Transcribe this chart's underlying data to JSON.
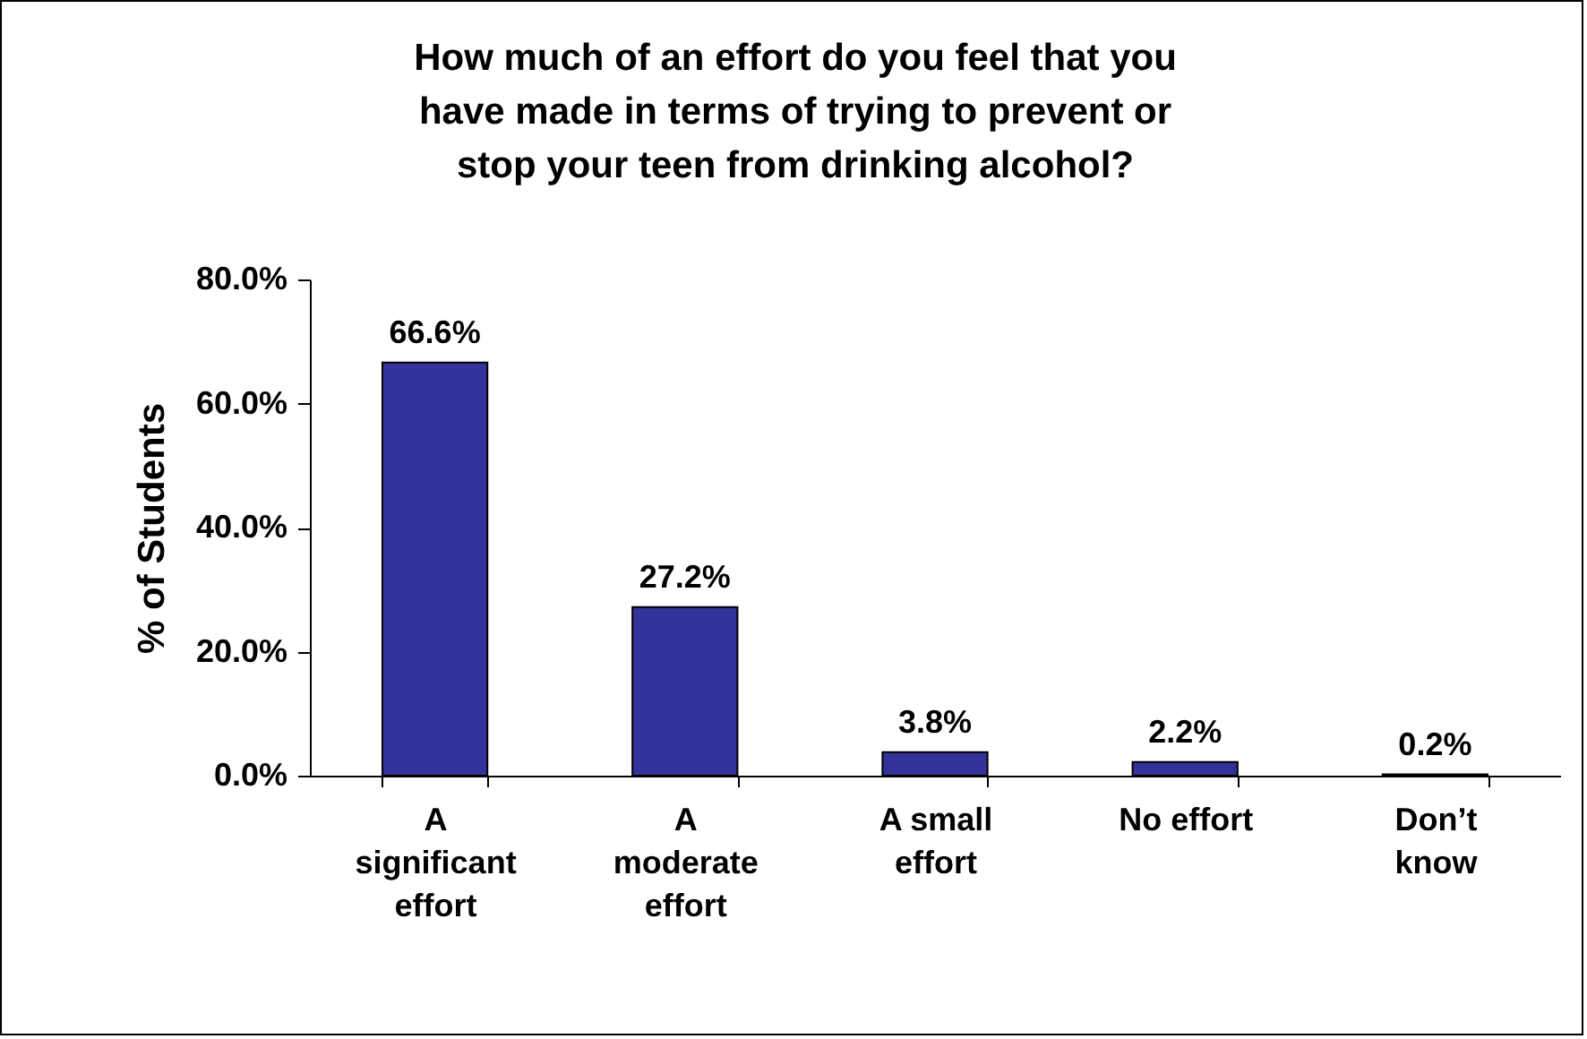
{
  "chart_data": {
    "type": "bar",
    "title": "How much of an effort do you feel that you have made in terms of trying to prevent or stop your teen from drinking alcohol?",
    "ylabel": "% of Students",
    "categories": [
      "A significant effort",
      "A moderate effort",
      "A small effort",
      "No effort",
      "Don’t know"
    ],
    "values": [
      66.6,
      27.2,
      3.8,
      2.2,
      0.2
    ],
    "value_labels": [
      "66.6%",
      "27.2%",
      "3.8%",
      "2.2%",
      "0.2%"
    ],
    "color": "#333399",
    "ylim": [
      0,
      80
    ],
    "yticks": [
      {
        "value": 0,
        "label": "0.0%"
      },
      {
        "value": 20,
        "label": "20.0%"
      },
      {
        "value": 40,
        "label": "40.0%"
      },
      {
        "value": 60,
        "label": "60.0%"
      },
      {
        "value": 80,
        "label": "80.0%"
      }
    ],
    "grid": false
  }
}
